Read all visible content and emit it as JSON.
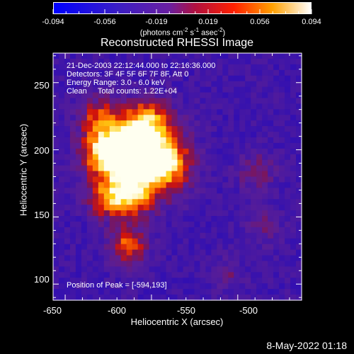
{
  "colorbar": {
    "tick_labels": [
      "-0.094",
      "-0.056",
      "-0.019",
      "0.019",
      "0.056",
      "0.094"
    ],
    "units": {
      "prefix": "(photons cm",
      "exp1": "-2",
      "mid1": " s",
      "exp2": "-1",
      "mid2": " asec",
      "exp3": "-2",
      "suffix": ")"
    },
    "range": [
      -0.094,
      0.094
    ]
  },
  "title": "Reconstructed RHESSI Image",
  "info": {
    "time_range": "21-Dec-2003 22:12:44.000 to 22:16:36.000",
    "detectors": "Detectors: 3F 4F 5F 6F 7F 8F, Att 0",
    "energy": "Energy Range: 3.0 - 6.0 keV",
    "clean": "Clean     Total counts: 1.22E+04"
  },
  "peak": "Position of Peak = [-594,193]",
  "axes": {
    "x_label": "Heliocentric X (arcsec)",
    "y_label": "Heliocentric Y (arcsec)",
    "x_ticks": [
      "-650",
      "-600",
      "-550",
      "-500"
    ],
    "y_ticks": [
      "100",
      "150",
      "200",
      "250"
    ],
    "xlim": [
      -657,
      -513
    ],
    "ylim": [
      88,
      272
    ]
  },
  "footer_date": "8-May-2022 01:18",
  "colors": {
    "min": "#0000ff",
    "mid": "#6a1fa0",
    "hot": "#ff6000",
    "max": "#ffffff"
  }
}
